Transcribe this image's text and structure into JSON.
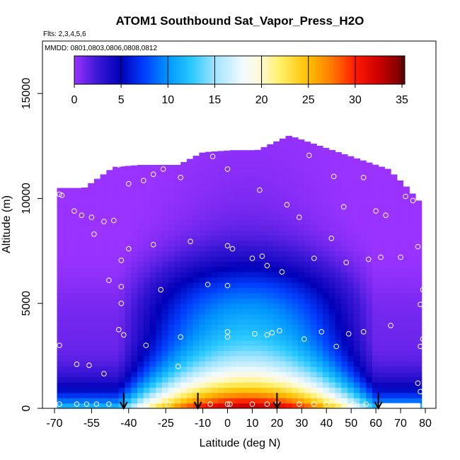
{
  "chart_data": {
    "type": "heatmap",
    "title": "ATOM1 Southbound Sat_Vapor_Press_H2O",
    "flights_note": "Flts: 2,3,4,5,6",
    "dates_note": "MMDD: 0801,0803,0806,0808,0812",
    "xlabel": "Latitude (deg N)",
    "ylabel": "Altitude (m)",
    "xlim": [
      -70,
      80
    ],
    "ylim": [
      0,
      17500
    ],
    "x_ticks": [
      -70,
      -55,
      -40,
      -25,
      -10,
      0,
      10,
      20,
      30,
      40,
      50,
      60,
      70,
      80
    ],
    "x_tick_labels": [
      "-70",
      "-55",
      "-40",
      "-25",
      "-10",
      "0",
      "10",
      "20",
      "30",
      "40",
      "50",
      "60",
      "70",
      "80"
    ],
    "y_ticks": [
      0,
      5000,
      10000,
      15000
    ],
    "y_tick_labels": [
      "0",
      "5000",
      "10000",
      "15000"
    ],
    "colorbar": {
      "min": 0,
      "max": 35.3,
      "ticks": [
        0,
        5,
        10,
        15,
        20,
        25,
        30,
        35
      ],
      "tick_labels": [
        "0",
        "5",
        "10",
        "15",
        "20",
        "25",
        "30",
        "35"
      ],
      "gradient": [
        {
          "v": 0,
          "c": "#9a33ff"
        },
        {
          "v": 2.5,
          "c": "#3a17d6"
        },
        {
          "v": 5,
          "c": "#0000b8"
        },
        {
          "v": 7.5,
          "c": "#0040ff"
        },
        {
          "v": 10,
          "c": "#0095ff"
        },
        {
          "v": 12.5,
          "c": "#29c8ff"
        },
        {
          "v": 15,
          "c": "#9ee4ff"
        },
        {
          "v": 18,
          "c": "#f3faff"
        },
        {
          "v": 20,
          "c": "#fff9d0"
        },
        {
          "v": 22,
          "c": "#fff066"
        },
        {
          "v": 25,
          "c": "#ffbf00"
        },
        {
          "v": 27.5,
          "c": "#ff7a00"
        },
        {
          "v": 30,
          "c": "#ff1a00"
        },
        {
          "v": 32.5,
          "c": "#cc0000"
        },
        {
          "v": 35.3,
          "c": "#6b0000"
        }
      ]
    },
    "field": {
      "description": "Saturation vapor pressure of H2O vs latitude and altitude",
      "lat_range": [
        -69,
        78
      ],
      "profile_points": [
        {
          "lat": -69,
          "top": 10500
        },
        {
          "lat": -58,
          "top": 10500
        },
        {
          "lat": -46,
          "top": 11500
        },
        {
          "lat": -35,
          "top": 11600
        },
        {
          "lat": -20,
          "top": 11600
        },
        {
          "lat": -10,
          "top": 12200
        },
        {
          "lat": 2,
          "top": 12300
        },
        {
          "lat": 12,
          "top": 12300
        },
        {
          "lat": 25,
          "top": 13000
        },
        {
          "lat": 45,
          "top": 12200
        },
        {
          "lat": 55,
          "top": 11800
        },
        {
          "lat": 65,
          "top": 11400
        },
        {
          "lat": 72,
          "top": 10600
        },
        {
          "lat": 78,
          "top": 9800
        }
      ]
    },
    "sample_points": [
      {
        "lat": -68,
        "alt": 10200
      },
      {
        "lat": -67,
        "alt": 10150
      },
      {
        "lat": -62,
        "alt": 9400
      },
      {
        "lat": -59,
        "alt": 9200
      },
      {
        "lat": -55,
        "alt": 9100
      },
      {
        "lat": -50,
        "alt": 8900
      },
      {
        "lat": -46,
        "alt": 8950
      },
      {
        "lat": -54,
        "alt": 8300
      },
      {
        "lat": -44,
        "alt": 11600
      },
      {
        "lat": -40,
        "alt": 10700
      },
      {
        "lat": -34,
        "alt": 10850
      },
      {
        "lat": -30,
        "alt": 11150
      },
      {
        "lat": -26,
        "alt": 11400
      },
      {
        "lat": -19,
        "alt": 11000
      },
      {
        "lat": -6,
        "alt": 12000
      },
      {
        "lat": 0,
        "alt": 11400
      },
      {
        "lat": 33,
        "alt": 12050
      },
      {
        "lat": 43,
        "alt": 11050
      },
      {
        "lat": 55,
        "alt": 11000
      },
      {
        "lat": 68,
        "alt": 11400
      },
      {
        "lat": 72,
        "alt": 10100
      },
      {
        "lat": 75,
        "alt": 9900
      },
      {
        "lat": 13,
        "alt": 10400
      },
      {
        "lat": 24,
        "alt": 9700
      },
      {
        "lat": 29,
        "alt": 9100
      },
      {
        "lat": 47,
        "alt": 9600
      },
      {
        "lat": 60,
        "alt": 9400
      },
      {
        "lat": 64,
        "alt": 9200
      },
      {
        "lat": 42,
        "alt": 8100
      },
      {
        "lat": -40,
        "alt": 7600
      },
      {
        "lat": -30,
        "alt": 7800
      },
      {
        "lat": -15,
        "alt": 7950
      },
      {
        "lat": 0,
        "alt": 7750
      },
      {
        "lat": 2,
        "alt": 7600
      },
      {
        "lat": -43,
        "alt": 7050
      },
      {
        "lat": 10,
        "alt": 7150
      },
      {
        "lat": 14,
        "alt": 7250
      },
      {
        "lat": 16,
        "alt": 6800
      },
      {
        "lat": 22,
        "alt": 6500
      },
      {
        "lat": 35,
        "alt": 7150
      },
      {
        "lat": 48,
        "alt": 6950
      },
      {
        "lat": 57,
        "alt": 7100
      },
      {
        "lat": 62,
        "alt": 7200
      },
      {
        "lat": 70,
        "alt": 7200
      },
      {
        "lat": 77,
        "alt": 7700
      },
      {
        "lat": -48,
        "alt": 6100
      },
      {
        "lat": -43,
        "alt": 5800
      },
      {
        "lat": -27,
        "alt": 5650
      },
      {
        "lat": -8,
        "alt": 5900
      },
      {
        "lat": 0,
        "alt": 5850
      },
      {
        "lat": 79,
        "alt": 5650
      },
      {
        "lat": 78,
        "alt": 4950
      },
      {
        "lat": -43,
        "alt": 5000
      },
      {
        "lat": -44,
        "alt": 3750
      },
      {
        "lat": -42,
        "alt": 3500
      },
      {
        "lat": -68,
        "alt": 3000
      },
      {
        "lat": -33,
        "alt": 3000
      },
      {
        "lat": -19,
        "alt": 3400
      },
      {
        "lat": 0,
        "alt": 3650
      },
      {
        "lat": 0,
        "alt": 3400
      },
      {
        "lat": 11,
        "alt": 3550
      },
      {
        "lat": 16,
        "alt": 3500
      },
      {
        "lat": 18,
        "alt": 3600
      },
      {
        "lat": 21,
        "alt": 3700
      },
      {
        "lat": 31,
        "alt": 3300
      },
      {
        "lat": 38,
        "alt": 3650
      },
      {
        "lat": 44,
        "alt": 2950
      },
      {
        "lat": 49,
        "alt": 3550
      },
      {
        "lat": 55,
        "alt": 3650
      },
      {
        "lat": 66,
        "alt": 3950
      },
      {
        "lat": 79,
        "alt": 3300
      },
      {
        "lat": 78,
        "alt": 2950
      },
      {
        "lat": -61,
        "alt": 2100
      },
      {
        "lat": -56,
        "alt": 2050
      },
      {
        "lat": -50,
        "alt": 1650
      },
      {
        "lat": -20,
        "alt": 2000
      },
      {
        "lat": 77,
        "alt": 1200
      },
      {
        "lat": 78,
        "alt": 800
      },
      {
        "lat": -68,
        "alt": 200
      },
      {
        "lat": -61,
        "alt": 200
      },
      {
        "lat": -57,
        "alt": 200
      },
      {
        "lat": -53,
        "alt": 200
      },
      {
        "lat": -48,
        "alt": 200
      },
      {
        "lat": -33,
        "alt": 200
      },
      {
        "lat": -24,
        "alt": 200
      },
      {
        "lat": -7,
        "alt": 200
      },
      {
        "lat": 0,
        "alt": 200
      },
      {
        "lat": 1,
        "alt": 200
      },
      {
        "lat": 10,
        "alt": 200
      },
      {
        "lat": 16,
        "alt": 200
      },
      {
        "lat": 20,
        "alt": 200
      },
      {
        "lat": 29,
        "alt": 200
      },
      {
        "lat": 35,
        "alt": 200
      },
      {
        "lat": 40,
        "alt": 200
      },
      {
        "lat": 51,
        "alt": 200
      },
      {
        "lat": 56,
        "alt": 200
      }
    ],
    "arrow_lats": [
      -42,
      -12,
      20,
      61
    ]
  }
}
